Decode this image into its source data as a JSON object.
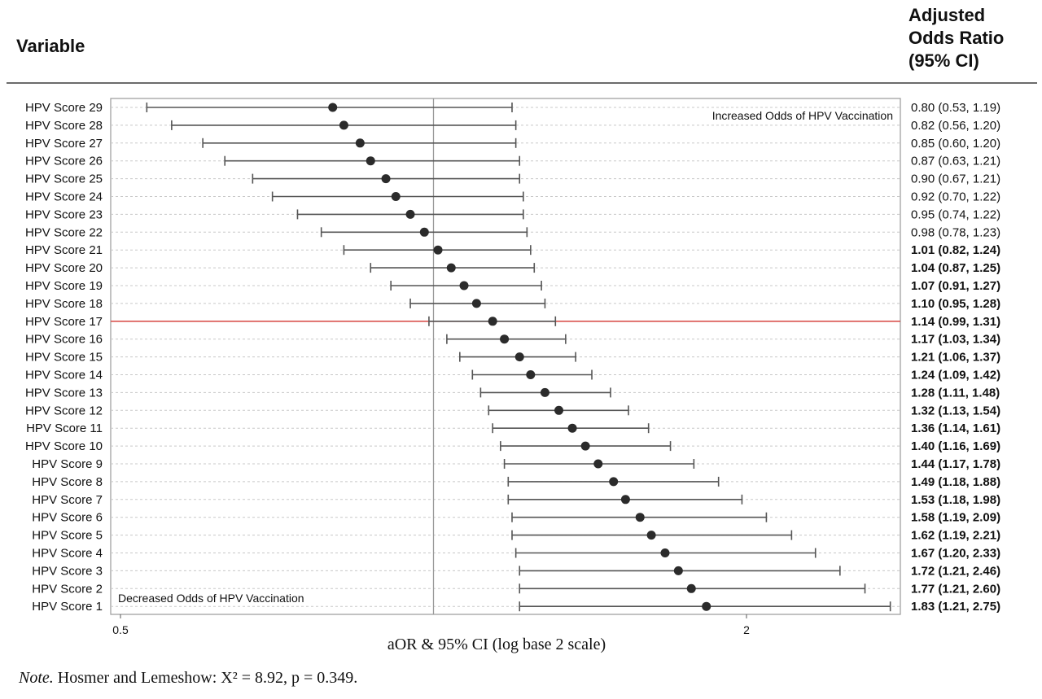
{
  "header": {
    "variable": "Variable",
    "aor_line1": "Adjusted",
    "aor_line2": "Odds Ratio",
    "aor_line3": "(95% CI)"
  },
  "annotations": {
    "increased": "Increased Odds of HPV Vaccination",
    "decreased": "Decreased Odds of HPV Vaccination"
  },
  "note": {
    "label": "Note.",
    "text": " Hosmer and Lemeshow: X² = 8.92, p = 0.349."
  },
  "colors": {
    "reference_line": "#d9534f",
    "points": "#2b2b2b",
    "ci_lines": "#555555",
    "frame": "#9a9a9a"
  },
  "chart_data": {
    "type": "forest",
    "x_scale": "log2",
    "xlabel": "aOR & 95% CI (log base 2 scale)",
    "xlim": [
      0.5,
      2.8
    ],
    "x_ticks": [
      0.5,
      2
    ],
    "x_tick_labels": [
      "0.5",
      "2"
    ],
    "reference_value": 1,
    "highlight_row": "HPV Score 17",
    "rows": [
      {
        "label": "HPV Score 29",
        "or": 0.8,
        "lo": 0.53,
        "hi": 1.19,
        "text": "0.80 (0.53, 1.19)",
        "bold": false
      },
      {
        "label": "HPV Score 28",
        "or": 0.82,
        "lo": 0.56,
        "hi": 1.2,
        "text": "0.82 (0.56, 1.20)",
        "bold": false
      },
      {
        "label": "HPV Score 27",
        "or": 0.85,
        "lo": 0.6,
        "hi": 1.2,
        "text": "0.85 (0.60, 1.20)",
        "bold": false
      },
      {
        "label": "HPV Score 26",
        "or": 0.87,
        "lo": 0.63,
        "hi": 1.21,
        "text": "0.87 (0.63, 1.21)",
        "bold": false
      },
      {
        "label": "HPV Score 25",
        "or": 0.9,
        "lo": 0.67,
        "hi": 1.21,
        "text": "0.90 (0.67, 1.21)",
        "bold": false
      },
      {
        "label": "HPV Score 24",
        "or": 0.92,
        "lo": 0.7,
        "hi": 1.22,
        "text": "0.92 (0.70, 1.22)",
        "bold": false
      },
      {
        "label": "HPV Score 23",
        "or": 0.95,
        "lo": 0.74,
        "hi": 1.22,
        "text": "0.95 (0.74, 1.22)",
        "bold": false
      },
      {
        "label": "HPV Score 22",
        "or": 0.98,
        "lo": 0.78,
        "hi": 1.23,
        "text": "0.98 (0.78, 1.23)",
        "bold": false
      },
      {
        "label": "HPV Score 21",
        "or": 1.01,
        "lo": 0.82,
        "hi": 1.24,
        "text": "1.01 (0.82, 1.24)",
        "bold": true
      },
      {
        "label": "HPV Score 20",
        "or": 1.04,
        "lo": 0.87,
        "hi": 1.25,
        "text": "1.04 (0.87, 1.25)",
        "bold": true
      },
      {
        "label": "HPV Score 19",
        "or": 1.07,
        "lo": 0.91,
        "hi": 1.27,
        "text": "1.07 (0.91, 1.27)",
        "bold": true
      },
      {
        "label": "HPV Score 18",
        "or": 1.1,
        "lo": 0.95,
        "hi": 1.28,
        "text": "1.10 (0.95, 1.28)",
        "bold": true
      },
      {
        "label": "HPV Score 17",
        "or": 1.14,
        "lo": 0.99,
        "hi": 1.31,
        "text": "1.14 (0.99, 1.31)",
        "bold": true
      },
      {
        "label": "HPV Score 16",
        "or": 1.17,
        "lo": 1.03,
        "hi": 1.34,
        "text": "1.17 (1.03, 1.34)",
        "bold": true
      },
      {
        "label": "HPV Score 15",
        "or": 1.21,
        "lo": 1.06,
        "hi": 1.37,
        "text": "1.21 (1.06, 1.37)",
        "bold": true
      },
      {
        "label": "HPV Score 14",
        "or": 1.24,
        "lo": 1.09,
        "hi": 1.42,
        "text": "1.24 (1.09, 1.42)",
        "bold": true
      },
      {
        "label": "HPV Score 13",
        "or": 1.28,
        "lo": 1.11,
        "hi": 1.48,
        "text": "1.28 (1.11, 1.48)",
        "bold": true
      },
      {
        "label": "HPV Score 12",
        "or": 1.32,
        "lo": 1.13,
        "hi": 1.54,
        "text": "1.32 (1.13, 1.54)",
        "bold": true
      },
      {
        "label": "HPV Score 11",
        "or": 1.36,
        "lo": 1.14,
        "hi": 1.61,
        "text": "1.36 (1.14, 1.61)",
        "bold": true
      },
      {
        "label": "HPV Score 10",
        "or": 1.4,
        "lo": 1.16,
        "hi": 1.69,
        "text": "1.40 (1.16, 1.69)",
        "bold": true
      },
      {
        "label": "HPV Score 9",
        "or": 1.44,
        "lo": 1.17,
        "hi": 1.78,
        "text": "1.44 (1.17, 1.78)",
        "bold": true
      },
      {
        "label": "HPV Score 8",
        "or": 1.49,
        "lo": 1.18,
        "hi": 1.88,
        "text": "1.49 (1.18, 1.88)",
        "bold": true
      },
      {
        "label": "HPV Score 7",
        "or": 1.53,
        "lo": 1.18,
        "hi": 1.98,
        "text": "1.53 (1.18, 1.98)",
        "bold": true
      },
      {
        "label": "HPV Score 6",
        "or": 1.58,
        "lo": 1.19,
        "hi": 2.09,
        "text": "1.58 (1.19, 2.09)",
        "bold": true
      },
      {
        "label": "HPV Score 5",
        "or": 1.62,
        "lo": 1.19,
        "hi": 2.21,
        "text": "1.62 (1.19, 2.21)",
        "bold": true
      },
      {
        "label": "HPV Score 4",
        "or": 1.67,
        "lo": 1.2,
        "hi": 2.33,
        "text": "1.67 (1.20, 2.33)",
        "bold": true
      },
      {
        "label": "HPV Score 3",
        "or": 1.72,
        "lo": 1.21,
        "hi": 2.46,
        "text": "1.72 (1.21, 2.46)",
        "bold": true
      },
      {
        "label": "HPV Score 2",
        "or": 1.77,
        "lo": 1.21,
        "hi": 2.6,
        "text": "1.77 (1.21, 2.60)",
        "bold": true
      },
      {
        "label": "HPV Score 1",
        "or": 1.83,
        "lo": 1.21,
        "hi": 2.75,
        "text": "1.83 (1.21, 2.75)",
        "bold": true
      }
    ]
  }
}
